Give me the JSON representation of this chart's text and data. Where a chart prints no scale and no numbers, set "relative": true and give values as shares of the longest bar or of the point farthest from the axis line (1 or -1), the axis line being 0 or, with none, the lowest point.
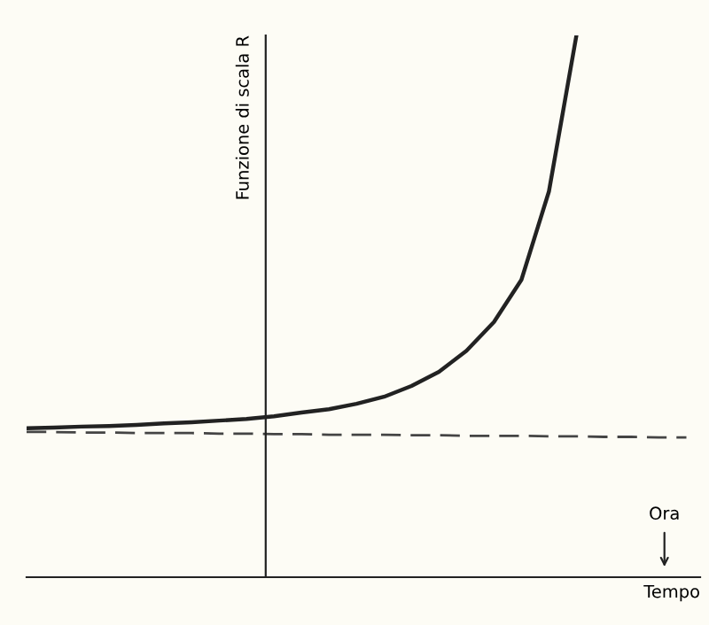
{
  "chart_data": {
    "type": "line",
    "relative": true,
    "xlabel": "Tempo",
    "ylabel": "Funzione di scala R",
    "annotations": [
      "Ora"
    ],
    "categories": [
      null,
      null,
      null,
      null,
      null,
      null,
      null,
      null,
      null,
      null,
      null,
      null,
      null,
      null,
      null,
      null,
      null,
      null,
      null,
      null,
      null,
      null,
      null,
      null,
      null
    ],
    "series": [
      {
        "color": "#222222",
        "line_style": "solid",
        "values": [
          0.275,
          0.276,
          0.278,
          0.279,
          0.281,
          0.284,
          0.286,
          0.289,
          0.292,
          0.297,
          0.304,
          0.31,
          0.32,
          0.333,
          0.353,
          0.379,
          0.418,
          0.471,
          0.549,
          0.712,
          1,
          null,
          null,
          null,
          null
        ]
      },
      {
        "color": "#444444",
        "line_style": "dashed",
        "values": [
          0.268,
          0.268,
          0.267,
          0.267,
          0.266,
          0.266,
          0.266,
          0.265,
          0.265,
          0.264,
          0.264,
          0.263,
          0.263,
          0.263,
          0.262,
          0.262,
          0.261,
          0.261,
          0.261,
          0.26,
          0.26,
          0.259,
          0.259,
          0.258,
          0.258
        ]
      }
    ],
    "marker": "none"
  }
}
